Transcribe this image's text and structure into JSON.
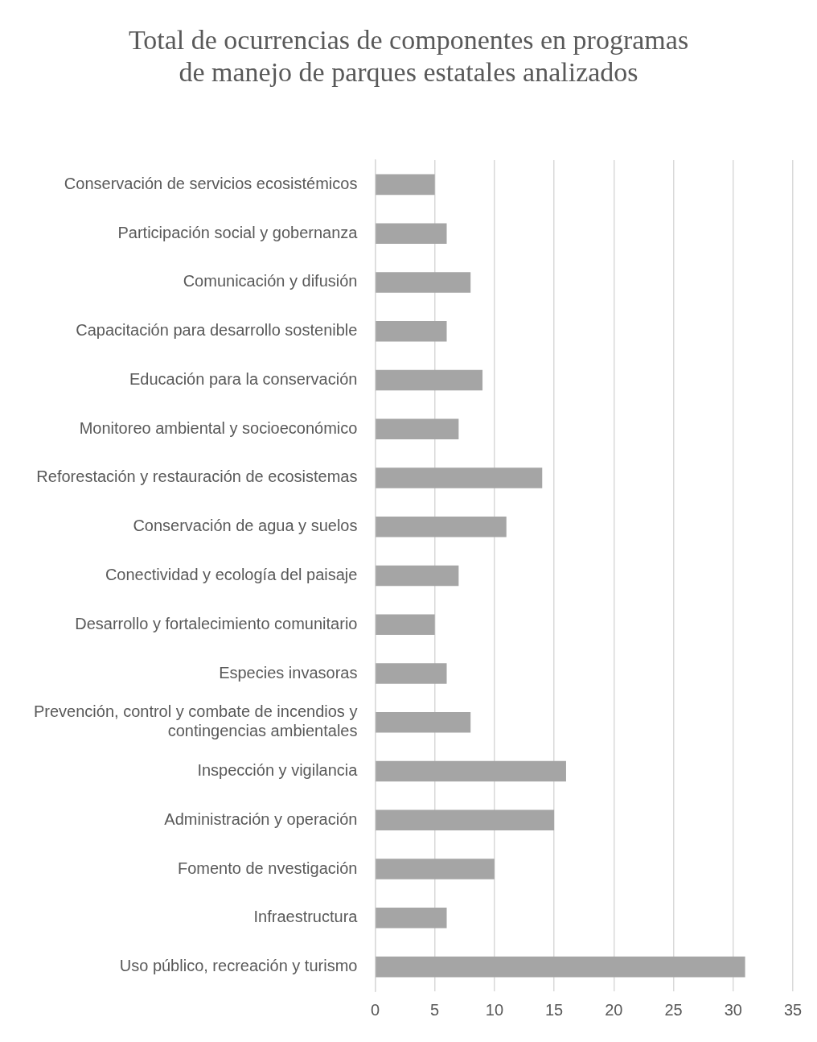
{
  "chart_data": {
    "type": "bar",
    "orientation": "horizontal",
    "title": "Total de ocurrencias de componentes en programas de manejo de parques estatales analizados",
    "categories": [
      "Conservación de servicios ecosistémicos",
      "Participación social y gobernanza",
      "Comunicación y difusión",
      "Capacitación para desarrollo sostenible",
      "Educación para la conservación",
      "Monitoreo ambiental y socioeconómico",
      "Reforestación y restauración de ecosistemas",
      "Conservación de agua y suelos",
      "Conectividad y ecología del paisaje",
      "Desarrollo y fortalecimiento comunitario",
      "Especies invasoras",
      "Prevención, control y combate de incendios y contingencias ambientales",
      "Inspección y vigilancia",
      "Administración y operación",
      "Fomento de nvestigación",
      "Infraestructura",
      "Uso público, recreación y turismo"
    ],
    "values": [
      5,
      6,
      8,
      6,
      9,
      7,
      14,
      11,
      7,
      5,
      6,
      8,
      16,
      15,
      10,
      6,
      31
    ],
    "color": "#a5a5a5",
    "xlim": [
      0,
      35
    ],
    "xticks": [
      0,
      5,
      10,
      15,
      20,
      25,
      30,
      35
    ],
    "grid": "x",
    "legend": false
  }
}
